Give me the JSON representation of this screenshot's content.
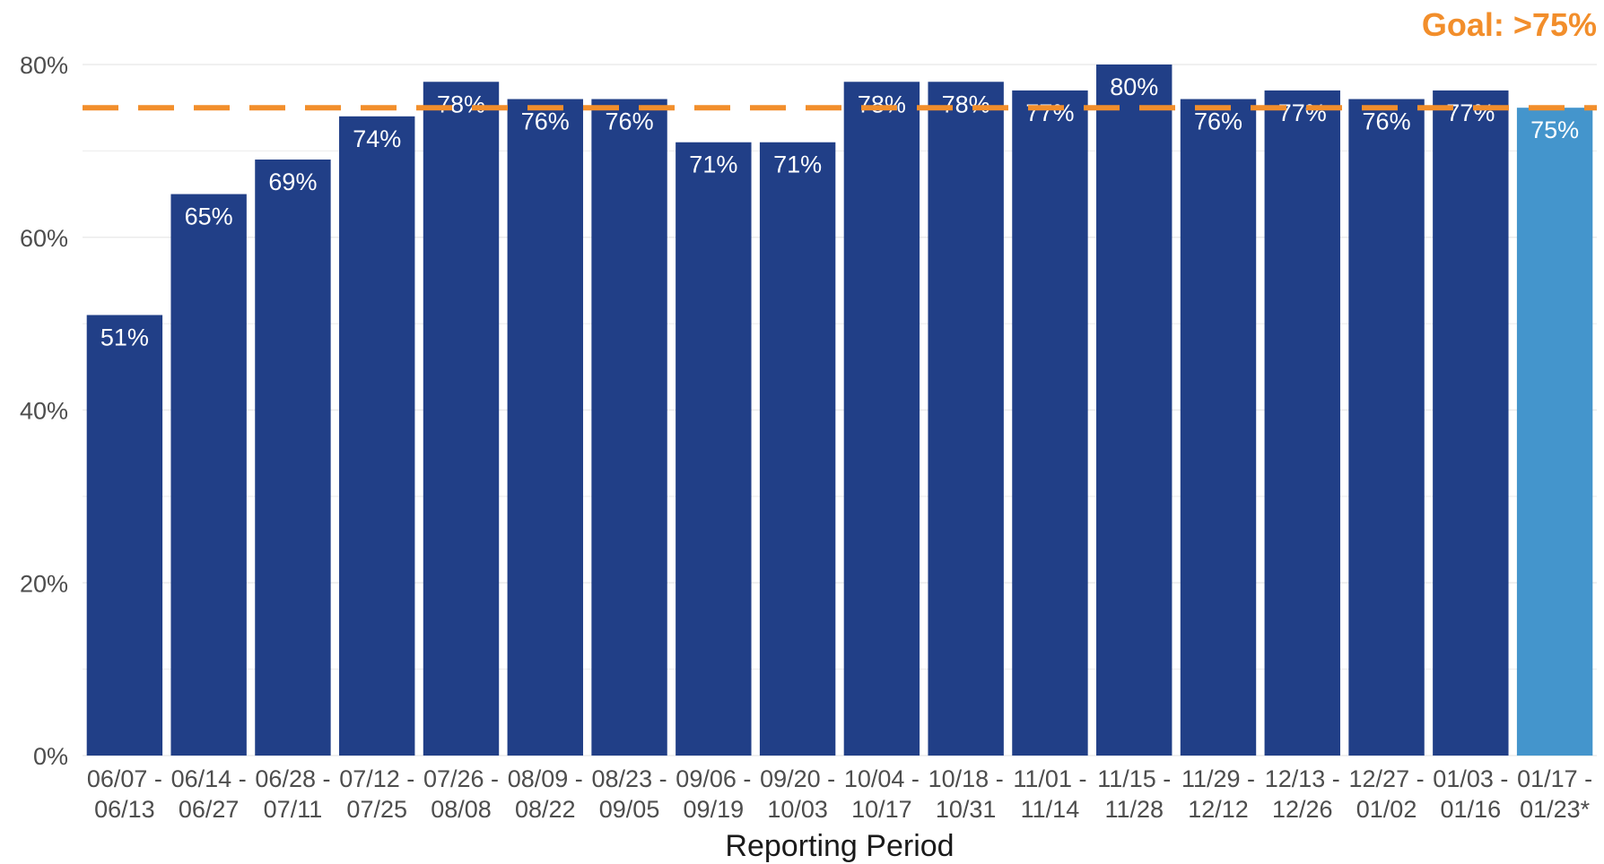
{
  "chart_data": {
    "type": "bar",
    "categories": [
      [
        "06/07 -",
        "06/13"
      ],
      [
        "06/14 -",
        "06/27"
      ],
      [
        "06/28 -",
        "07/11"
      ],
      [
        "07/12 -",
        "07/25"
      ],
      [
        "07/26 -",
        "08/08"
      ],
      [
        "08/09 -",
        "08/22"
      ],
      [
        "08/23 -",
        "09/05"
      ],
      [
        "09/06 -",
        "09/19"
      ],
      [
        "09/20 -",
        "10/03"
      ],
      [
        "10/04 -",
        "10/17"
      ],
      [
        "10/18 -",
        "10/31"
      ],
      [
        "11/01 -",
        "11/14"
      ],
      [
        "11/15 -",
        "11/28"
      ],
      [
        "11/29 -",
        "12/12"
      ],
      [
        "12/13 -",
        "12/26"
      ],
      [
        "12/27 -",
        "01/02"
      ],
      [
        "01/03 -",
        "01/16"
      ],
      [
        "01/17 -",
        "01/23*"
      ]
    ],
    "values": [
      51,
      65,
      69,
      74,
      78,
      76,
      76,
      71,
      71,
      78,
      78,
      77,
      80,
      76,
      77,
      76,
      77,
      75
    ],
    "value_labels": [
      "51%",
      "65%",
      "69%",
      "74%",
      "78%",
      "76%",
      "76%",
      "71%",
      "71%",
      "78%",
      "78%",
      "77%",
      "80%",
      "76%",
      "77%",
      "76%",
      "77%",
      "75%"
    ],
    "highlight_last": true,
    "xlabel": "Reporting Period",
    "ylabel": "",
    "ylim": [
      0,
      80
    ],
    "yticks": [
      0,
      20,
      40,
      60,
      80
    ],
    "ytick_labels": [
      "0%",
      "20%",
      "40%",
      "60%",
      "80%"
    ],
    "grid": "horizontal",
    "goal": {
      "value": 75,
      "label": "Goal: >75%"
    },
    "colors": {
      "bar": "#213f87",
      "bar_highlight": "#4495cc",
      "goal": "#f28e2b",
      "grid": "#ebebeb"
    }
  }
}
